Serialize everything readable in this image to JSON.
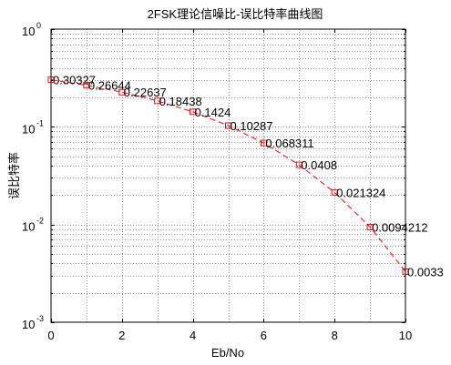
{
  "chart_data": {
    "type": "line",
    "title": "2FSK理论信噪比-误比特率曲线图",
    "xlabel": "Eb/No",
    "ylabel": "误比特率",
    "xlim": [
      0,
      10
    ],
    "ylim": [
      0.001,
      1
    ],
    "yscale": "log",
    "grid": true,
    "x_ticks": [
      "0",
      "2",
      "4",
      "6",
      "8",
      "10"
    ],
    "y_tick_bases": [
      "10",
      "10",
      "10",
      "10"
    ],
    "y_tick_exponents": [
      "0",
      "-1",
      "-2",
      "-3"
    ],
    "series": [
      {
        "color": "#ff0000",
        "line_style": "dashed",
        "marker": "square",
        "x": [
          0,
          1,
          2,
          3,
          4,
          5,
          6,
          7,
          8,
          9,
          10
        ],
        "y": [
          0.30327,
          0.26644,
          0.22637,
          0.18438,
          0.1424,
          0.10287,
          0.068311,
          0.0408,
          0.021324,
          0.0094212,
          0.0033
        ],
        "labels": [
          "0.30327",
          "0.26644",
          "0.22637",
          "0.18438",
          "0.1424",
          "0.10287",
          "0.068311",
          "0.0408",
          "0.021324",
          "0.0094212",
          "0.0033"
        ]
      }
    ]
  }
}
